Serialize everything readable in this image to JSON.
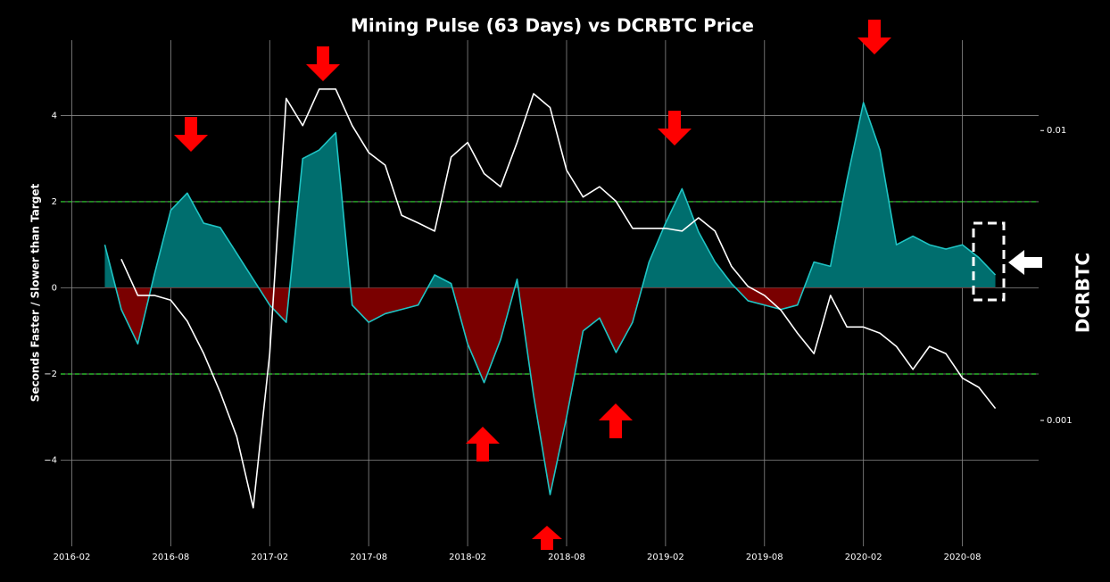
{
  "chart_data": {
    "type": "line",
    "title": "Mining Pulse (63 Days) vs DCRBTC Price",
    "ylabel": "Seconds Faster / Slower than Target",
    "y2label": "DCRBTC",
    "x": [
      "2016-04",
      "2016-05",
      "2016-06",
      "2016-07",
      "2016-08",
      "2016-09",
      "2016-10",
      "2016-11",
      "2016-12",
      "2017-01",
      "2017-02",
      "2017-03",
      "2017-04",
      "2017-05",
      "2017-06",
      "2017-07",
      "2017-08",
      "2017-09",
      "2017-10",
      "2017-11",
      "2017-12",
      "2018-01",
      "2018-02",
      "2018-03",
      "2018-04",
      "2018-05",
      "2018-06",
      "2018-07",
      "2018-08",
      "2018-09",
      "2018-10",
      "2018-11",
      "2018-12",
      "2019-01",
      "2019-02",
      "2019-03",
      "2019-04",
      "2019-05",
      "2019-06",
      "2019-07",
      "2019-08",
      "2019-09",
      "2019-10",
      "2019-11",
      "2019-12",
      "2020-01",
      "2020-02",
      "2020-03",
      "2020-04",
      "2020-05",
      "2020-06",
      "2020-07",
      "2020-08",
      "2020-09",
      "2020-10"
    ],
    "series": [
      {
        "name": "Mining Pulse",
        "color": "#1fc4c4",
        "pos_fill": "#006e6e",
        "neg_fill": "#7a0000",
        "values": [
          1.0,
          -0.5,
          -1.3,
          0.3,
          1.8,
          2.2,
          1.5,
          1.4,
          0.8,
          0.2,
          -0.4,
          -0.8,
          3.0,
          3.2,
          3.6,
          -0.4,
          -0.8,
          -0.6,
          -0.5,
          -0.4,
          0.3,
          0.1,
          -1.3,
          -2.2,
          -1.2,
          0.2,
          -2.5,
          -4.8,
          -3.0,
          -1.0,
          -0.7,
          -1.5,
          -0.8,
          0.6,
          1.5,
          2.3,
          1.3,
          0.6,
          0.1,
          -0.3,
          -0.4,
          -0.5,
          -0.4,
          0.6,
          0.5,
          2.5,
          4.3,
          3.2,
          1.0,
          1.2,
          1.0,
          0.9,
          1.0,
          0.7,
          0.3
        ]
      },
      {
        "name": "DCRBTC",
        "color": "#ffffff",
        "axis": "y2",
        "values": [
          null,
          0.0036,
          0.0027,
          0.0027,
          0.0026,
          0.0022,
          0.0017,
          0.00125,
          0.00088,
          0.0005,
          0.0017,
          0.0129,
          0.0104,
          0.0139,
          0.0139,
          0.0104,
          0.0084,
          0.0076,
          0.0051,
          0.0048,
          0.0045,
          0.0081,
          0.0091,
          0.0071,
          0.0064,
          0.0091,
          0.0134,
          0.012,
          0.0073,
          0.0059,
          0.0064,
          0.0057,
          0.0046,
          0.0046,
          0.0046,
          0.0045,
          0.005,
          0.0045,
          0.0034,
          0.0029,
          0.0027,
          0.0024,
          0.002,
          0.0017,
          0.0027,
          0.0021,
          0.0021,
          0.002,
          0.0018,
          0.0015,
          0.0018,
          0.0017,
          0.0014,
          0.0013,
          0.0011
        ]
      }
    ],
    "xlim": [
      "2016-01",
      "2021-01"
    ],
    "xticks": [
      "2016-02",
      "2016-08",
      "2017-02",
      "2017-08",
      "2018-02",
      "2018-08",
      "2019-02",
      "2019-08",
      "2020-02",
      "2020-08"
    ],
    "ylim": [
      -6,
      5.75
    ],
    "yticks": [
      {
        "value": -4,
        "label": "−4"
      },
      {
        "value": -2,
        "label": "−2"
      },
      0,
      2,
      4
    ],
    "y2lim": [
      0.000368,
      0.0205
    ],
    "y2ticks": [
      0.001,
      0.01
    ],
    "y2log": true,
    "hlines": [
      2,
      -2
    ],
    "hline_color": "#33dd33",
    "grid": true
  }
}
